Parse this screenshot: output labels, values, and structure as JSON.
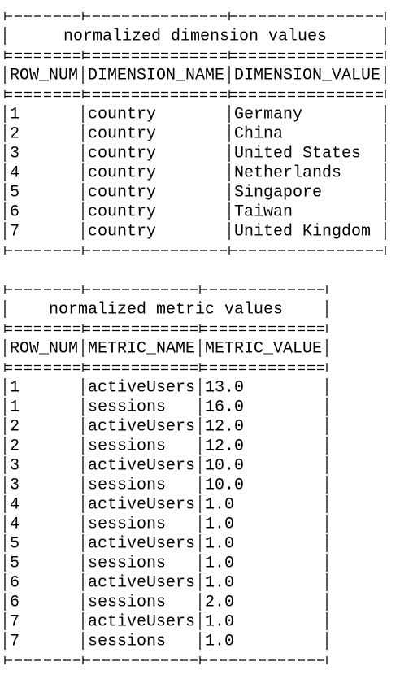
{
  "tables": [
    {
      "title": "normalized dimension values",
      "columns": [
        "ROW_NUM",
        "DIMENSION_NAME",
        "DIMENSION_VALUE"
      ],
      "rows": [
        [
          "1",
          "country",
          "Germany"
        ],
        [
          "2",
          "country",
          "China"
        ],
        [
          "3",
          "country",
          "United States"
        ],
        [
          "4",
          "country",
          "Netherlands"
        ],
        [
          "5",
          "country",
          "Singapore"
        ],
        [
          "6",
          "country",
          "Taiwan"
        ],
        [
          "7",
          "country",
          "United Kingdom"
        ]
      ]
    },
    {
      "title": "normalized metric values",
      "columns": [
        "ROW_NUM",
        "METRIC_NAME",
        "METRIC_VALUE"
      ],
      "rows": [
        [
          "1",
          "activeUsers",
          "13.0"
        ],
        [
          "1",
          "sessions",
          "16.0"
        ],
        [
          "2",
          "activeUsers",
          "12.0"
        ],
        [
          "2",
          "sessions",
          "12.0"
        ],
        [
          "3",
          "activeUsers",
          "10.0"
        ],
        [
          "3",
          "sessions",
          "10.0"
        ],
        [
          "4",
          "activeUsers",
          "1.0"
        ],
        [
          "4",
          "sessions",
          "1.0"
        ],
        [
          "5",
          "activeUsers",
          "1.0"
        ],
        [
          "5",
          "sessions",
          "1.0"
        ],
        [
          "6",
          "activeUsers",
          "1.0"
        ],
        [
          "6",
          "sessions",
          "2.0"
        ],
        [
          "7",
          "activeUsers",
          "1.0"
        ],
        [
          "7",
          "sessions",
          "1.0"
        ]
      ]
    }
  ]
}
